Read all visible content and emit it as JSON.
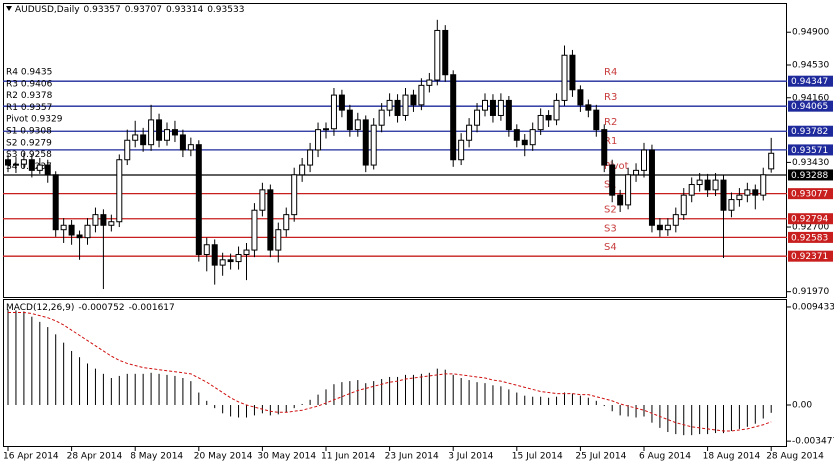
{
  "chart_data": [
    {
      "type": "candlestick",
      "title": "AUDUSD,Daily",
      "categories": [
        "16 Apr 2014",
        null,
        null,
        null,
        null,
        null,
        null,
        null,
        "28 Apr 2014",
        null,
        null,
        null,
        null,
        null,
        null,
        null,
        "8 May 2014",
        null,
        null,
        null,
        null,
        null,
        null,
        null,
        "20 May 2014",
        null,
        null,
        null,
        null,
        null,
        null,
        null,
        "30 May 2014",
        null,
        null,
        null,
        null,
        null,
        null,
        null,
        "11 Jun 2014",
        null,
        null,
        null,
        null,
        null,
        null,
        null,
        "23 Jun 2014",
        null,
        null,
        null,
        null,
        null,
        null,
        null,
        "3 Jul 2014",
        null,
        null,
        null,
        null,
        null,
        null,
        null,
        "15 Jul 2014",
        null,
        null,
        null,
        null,
        null,
        null,
        null,
        "25 Jul 2014",
        null,
        null,
        null,
        null,
        null,
        null,
        null,
        "6 Aug 2014",
        null,
        null,
        null,
        null,
        null,
        null,
        null,
        "18 Aug 2014",
        null,
        null,
        null,
        null,
        null,
        null,
        null,
        "28 Aug 2014"
      ],
      "ohlc": [
        [
          0.9346,
          0.9352,
          0.9332,
          0.934
        ],
        [
          0.934,
          0.9349,
          0.9331,
          0.9341
        ],
        [
          0.9341,
          0.9354,
          0.9336,
          0.9346
        ],
        [
          0.9346,
          0.9352,
          0.9326,
          0.9334
        ],
        [
          0.9334,
          0.9348,
          0.933,
          0.934
        ],
        [
          0.934,
          0.9346,
          0.932,
          0.9329
        ],
        [
          0.9329,
          0.9333,
          0.9259,
          0.9267
        ],
        [
          0.9267,
          0.928,
          0.9252,
          0.9272
        ],
        [
          0.9272,
          0.9278,
          0.925,
          0.9261
        ],
        [
          0.9261,
          0.9266,
          0.9233,
          0.9258
        ],
        [
          0.9258,
          0.928,
          0.925,
          0.9272
        ],
        [
          0.9272,
          0.9292,
          0.9264,
          0.9284
        ],
        [
          0.9284,
          0.929,
          0.92,
          0.9272
        ],
        [
          0.9272,
          0.9284,
          0.9265,
          0.9276
        ],
        [
          0.9276,
          0.9352,
          0.927,
          0.9346
        ],
        [
          0.9346,
          0.938,
          0.934,
          0.9368
        ],
        [
          0.9368,
          0.939,
          0.936,
          0.9374
        ],
        [
          0.9374,
          0.9382,
          0.9355,
          0.9363
        ],
        [
          0.9363,
          0.9408,
          0.9356,
          0.9391
        ],
        [
          0.9391,
          0.9398,
          0.936,
          0.9368
        ],
        [
          0.9368,
          0.9388,
          0.9362,
          0.938
        ],
        [
          0.938,
          0.939,
          0.9366,
          0.9374
        ],
        [
          0.9374,
          0.938,
          0.9349,
          0.9357
        ],
        [
          0.9357,
          0.9371,
          0.935,
          0.9363
        ],
        [
          0.9363,
          0.9368,
          0.9231,
          0.9239
        ],
        [
          0.9239,
          0.9258,
          0.922,
          0.925
        ],
        [
          0.925,
          0.9256,
          0.9205,
          0.9227
        ],
        [
          0.9227,
          0.9241,
          0.9215,
          0.9233
        ],
        [
          0.9233,
          0.924,
          0.9222,
          0.9231
        ],
        [
          0.9231,
          0.9248,
          0.9222,
          0.9239
        ],
        [
          0.9239,
          0.9252,
          0.921,
          0.9244
        ],
        [
          0.9244,
          0.9297,
          0.9236,
          0.9289
        ],
        [
          0.9289,
          0.932,
          0.9282,
          0.9312
        ],
        [
          0.9312,
          0.9318,
          0.9236,
          0.9244
        ],
        [
          0.9244,
          0.9275,
          0.923,
          0.9267
        ],
        [
          0.9267,
          0.9292,
          0.9259,
          0.9284
        ],
        [
          0.9284,
          0.9337,
          0.9276,
          0.9329
        ],
        [
          0.9329,
          0.9348,
          0.9321,
          0.934
        ],
        [
          0.934,
          0.9365,
          0.9332,
          0.9357
        ],
        [
          0.9357,
          0.9388,
          0.9349,
          0.938
        ],
        [
          0.938,
          0.9388,
          0.937,
          0.9381
        ],
        [
          0.9381,
          0.9427,
          0.9373,
          0.9419
        ],
        [
          0.9419,
          0.9425,
          0.9394,
          0.9402
        ],
        [
          0.9402,
          0.9408,
          0.9372,
          0.938
        ],
        [
          0.938,
          0.9399,
          0.9372,
          0.9391
        ],
        [
          0.9391,
          0.9396,
          0.9332,
          0.934
        ],
        [
          0.934,
          0.9393,
          0.9335,
          0.9385
        ],
        [
          0.9385,
          0.941,
          0.9377,
          0.9402
        ],
        [
          0.9402,
          0.9421,
          0.9395,
          0.9413
        ],
        [
          0.9413,
          0.942,
          0.9388,
          0.9396
        ],
        [
          0.9396,
          0.9427,
          0.939,
          0.9419
        ],
        [
          0.9419,
          0.9425,
          0.94,
          0.9408
        ],
        [
          0.9408,
          0.9438,
          0.9402,
          0.943
        ],
        [
          0.943,
          0.9444,
          0.9422,
          0.9436
        ],
        [
          0.9436,
          0.9504,
          0.943,
          0.9492
        ],
        [
          0.9492,
          0.9498,
          0.9434,
          0.9442
        ],
        [
          0.9442,
          0.9447,
          0.9338,
          0.9346
        ],
        [
          0.9346,
          0.9376,
          0.934,
          0.9368
        ],
        [
          0.9368,
          0.9393,
          0.936,
          0.9385
        ],
        [
          0.9385,
          0.941,
          0.9377,
          0.9402
        ],
        [
          0.9402,
          0.9421,
          0.9395,
          0.9413
        ],
        [
          0.9413,
          0.942,
          0.9388,
          0.9396
        ],
        [
          0.9396,
          0.9421,
          0.939,
          0.9413
        ],
        [
          0.9413,
          0.9418,
          0.9372,
          0.938
        ],
        [
          0.938,
          0.9386,
          0.936,
          0.9368
        ],
        [
          0.9368,
          0.9375,
          0.935,
          0.9363
        ],
        [
          0.9363,
          0.9388,
          0.9356,
          0.938
        ],
        [
          0.938,
          0.9404,
          0.9374,
          0.9396
        ],
        [
          0.9396,
          0.9402,
          0.9383,
          0.9391
        ],
        [
          0.9391,
          0.9421,
          0.9385,
          0.9413
        ],
        [
          0.9413,
          0.9475,
          0.9407,
          0.9464
        ],
        [
          0.9464,
          0.947,
          0.9417,
          0.9425
        ],
        [
          0.9425,
          0.943,
          0.94,
          0.9408
        ],
        [
          0.9408,
          0.9414,
          0.9394,
          0.9402
        ],
        [
          0.9402,
          0.9408,
          0.9372,
          0.938
        ],
        [
          0.938,
          0.9386,
          0.9332,
          0.934
        ],
        [
          0.934,
          0.9346,
          0.9298,
          0.9306
        ],
        [
          0.9306,
          0.9312,
          0.9287,
          0.9295
        ],
        [
          0.9295,
          0.9337,
          0.929,
          0.9329
        ],
        [
          0.9329,
          0.9342,
          0.9321,
          0.9334
        ],
        [
          0.9334,
          0.9365,
          0.9326,
          0.9357
        ],
        [
          0.9357,
          0.9363,
          0.9264,
          0.9272
        ],
        [
          0.9272,
          0.928,
          0.9259,
          0.9267
        ],
        [
          0.9267,
          0.928,
          0.926,
          0.9272
        ],
        [
          0.9272,
          0.9292,
          0.9264,
          0.9284
        ],
        [
          0.9284,
          0.9314,
          0.9278,
          0.9306
        ],
        [
          0.9306,
          0.9326,
          0.9298,
          0.9318
        ],
        [
          0.9318,
          0.9331,
          0.931,
          0.9323
        ],
        [
          0.9323,
          0.933,
          0.9304,
          0.9312
        ],
        [
          0.9312,
          0.9331,
          0.9305,
          0.9323
        ],
        [
          0.9323,
          0.9329,
          0.9235,
          0.9289
        ],
        [
          0.9289,
          0.9309,
          0.9281,
          0.9301
        ],
        [
          0.9301,
          0.9314,
          0.9293,
          0.9306
        ],
        [
          0.9306,
          0.932,
          0.9298,
          0.9312
        ],
        [
          0.9312,
          0.9318,
          0.929,
          0.9306
        ],
        [
          0.9306,
          0.9337,
          0.93,
          0.9329
        ],
        [
          0.93357,
          0.93707,
          0.93314,
          0.93533
        ]
      ],
      "up_color": "#ffffff",
      "down_color": "#000000",
      "ylim": [
        0.9191,
        0.9523
      ],
      "yticks": [
        {
          "value": 0.949,
          "label": "0.94900"
        },
        {
          "value": 0.9453,
          "label": "0.94530"
        },
        {
          "value": 0.9416,
          "label": "0.94160"
        },
        {
          "value": 0.9343,
          "label": "0.93430"
        },
        {
          "value": 0.927,
          "label": "0.92700"
        },
        {
          "value": 0.9197,
          "label": "0.91970"
        }
      ],
      "levels": [
        {
          "name": "R4",
          "value": 0.94347,
          "color": "#1e2a9c",
          "label": "R4 0.9435"
        },
        {
          "name": "R3",
          "value": 0.94065,
          "color": "#1e2a9c",
          "label": "R3 0.9406"
        },
        {
          "name": "R2",
          "value": 0.93782,
          "color": "#1e2a9c",
          "label": "R2 0.9378"
        },
        {
          "name": "R1",
          "value": 0.93571,
          "color": "#1e2a9c",
          "label": "R1 0.9357"
        },
        {
          "name": "Pivot",
          "value": 0.93288,
          "color": "#000000",
          "label": "Pivot 0.9329"
        },
        {
          "name": "S1",
          "value": 0.93077,
          "color": "#c81e1e",
          "label": "S1 0.9308"
        },
        {
          "name": "S2",
          "value": 0.92794,
          "color": "#c81e1e",
          "label": "S2 0.9279"
        },
        {
          "name": "S3",
          "value": 0.92583,
          "color": "#c81e1e",
          "label": "S3 0.9258"
        },
        {
          "name": "S4",
          "value": 0.92371,
          "color": "#c81e1e",
          "label": "S4 0.9237"
        }
      ]
    },
    {
      "type": "macd",
      "title": "MACD(12,26,9)",
      "series": [
        {
          "type": "histogram",
          "color": "#000000",
          "values": [
            0.0092,
            0.0091,
            0.009,
            0.0085,
            0.008,
            0.0075,
            0.0068,
            0.006,
            0.0052,
            0.0046,
            0.004,
            0.0035,
            0.003,
            0.0026,
            0.0028,
            0.003,
            0.003,
            0.003,
            0.0031,
            0.003,
            0.0029,
            0.0028,
            0.0026,
            0.0023,
            0.0012,
            0.0004,
            -0.0003,
            -0.0008,
            -0.0011,
            -0.0012,
            -0.0012,
            -0.001,
            -0.0008,
            -0.001,
            -0.0009,
            -0.0007,
            -0.0003,
            0.0001,
            0.0005,
            0.001,
            0.0015,
            0.002,
            0.0022,
            0.0023,
            0.0024,
            0.0021,
            0.0023,
            0.0025,
            0.0027,
            0.0027,
            0.0029,
            0.0029,
            0.003,
            0.0031,
            0.0035,
            0.0034,
            0.0029,
            0.0026,
            0.0024,
            0.0022,
            0.0021,
            0.0019,
            0.0018,
            0.0015,
            0.0012,
            0.0009,
            0.0008,
            0.0008,
            0.0007,
            0.0008,
            0.0012,
            0.0011,
            0.0009,
            0.0007,
            0.0004,
            -0.0001,
            -0.0006,
            -0.001,
            -0.0011,
            -0.0012,
            -0.0011,
            -0.0017,
            -0.0022,
            -0.0026,
            -0.0028,
            -0.0029,
            -0.0029,
            -0.0028,
            -0.0028,
            -0.0027,
            -0.0027,
            -0.0025,
            -0.0023,
            -0.0021,
            -0.0018,
            -0.0013,
            -0.000752
          ]
        },
        {
          "type": "line",
          "color": "#d01010",
          "values": [
            0.0089,
            0.0089,
            0.0089,
            0.0088,
            0.0086,
            0.0084,
            0.0081,
            0.0077,
            0.0072,
            0.0067,
            0.0062,
            0.0057,
            0.0052,
            0.0047,
            0.0043,
            0.004,
            0.0038,
            0.0036,
            0.0035,
            0.0034,
            0.0033,
            0.0032,
            0.0031,
            0.003,
            0.0026,
            0.0022,
            0.0017,
            0.0012,
            0.0007,
            0.0003,
            0.0,
            -0.0002,
            -0.0004,
            -0.0006,
            -0.0007,
            -0.0007,
            -0.0006,
            -0.0005,
            -0.0003,
            -0.0001,
            0.0002,
            0.0005,
            0.0008,
            0.0011,
            0.0014,
            0.0016,
            0.0018,
            0.002,
            0.0022,
            0.0023,
            0.0025,
            0.0026,
            0.0027,
            0.0028,
            0.0029,
            0.003,
            0.003,
            0.0029,
            0.0028,
            0.0027,
            0.0026,
            0.0024,
            0.0023,
            0.0021,
            0.0019,
            0.0017,
            0.0015,
            0.0013,
            0.0012,
            0.0011,
            0.0011,
            0.0011,
            0.001,
            0.001,
            0.0008,
            0.0006,
            0.0004,
            0.0001,
            -0.0001,
            -0.0003,
            -0.0005,
            -0.0008,
            -0.0011,
            -0.0014,
            -0.0017,
            -0.0019,
            -0.0021,
            -0.0022,
            -0.0023,
            -0.0024,
            -0.0025,
            -0.0025,
            -0.0024,
            -0.0023,
            -0.0021,
            -0.0019,
            -0.001617
          ]
        }
      ],
      "ylim": [
        -0.00404,
        0.0102
      ],
      "yticks": [
        0.009433,
        {
          "value": 0,
          "label": "0.00"
        },
        -0.003477
      ]
    }
  ]
}
